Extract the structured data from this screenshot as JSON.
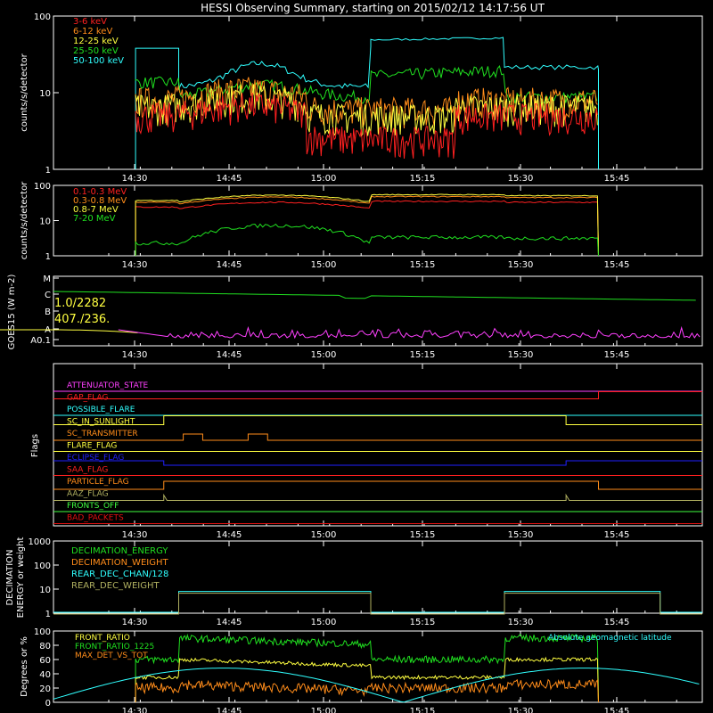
{
  "title": "HESSI Observing Summary, starting on 2015/02/12 14:17:56 UT",
  "x_tick_labels": [
    "14:30",
    "14:45",
    "15:00",
    "15:15",
    "15:30",
    "15:45"
  ],
  "colors": {
    "red": "#ff2020",
    "orange": "#ff8c1a",
    "yellow": "#ffff40",
    "green": "#20e020",
    "cyan": "#30ffff",
    "magenta": "#ff40ff",
    "blue": "#2020ff",
    "olive": "#b0b060",
    "lightgreen": "#40ff40",
    "darkred": "#e01010"
  },
  "chart_data": [
    {
      "type": "line",
      "id": "counts-low",
      "ylabel": "counts/s/detector",
      "yscale": "log",
      "ylim": [
        1,
        100
      ],
      "y_tick_labels": [
        "1",
        "10",
        "100"
      ],
      "series": [
        {
          "name": "3-6 keV",
          "color": "red"
        },
        {
          "name": "6-12 keV",
          "color": "orange"
        },
        {
          "name": "12-25 keV",
          "color": "yellow"
        },
        {
          "name": "25-50 keV",
          "color": "green"
        },
        {
          "name": "50-100 keV",
          "color": "cyan"
        }
      ]
    },
    {
      "type": "line",
      "id": "counts-high",
      "ylabel": "counts/s/detector",
      "yscale": "log",
      "ylim": [
        1,
        100
      ],
      "y_tick_labels": [
        "1",
        "10",
        "100"
      ],
      "series": [
        {
          "name": "0.1-0.3 MeV",
          "color": "red"
        },
        {
          "name": "0.3-0.8 MeV",
          "color": "orange"
        },
        {
          "name": "0.8-7 MeV",
          "color": "yellow"
        },
        {
          "name": "7-20 MeV",
          "color": "green"
        }
      ]
    },
    {
      "type": "line",
      "id": "goes",
      "ylabel": "GOES15 (W m-2)",
      "y_tick_labels": [
        "A0.1",
        "A",
        "B",
        "C",
        "M"
      ],
      "annotations": [
        "1.0/2282",
        "407./236."
      ]
    },
    {
      "type": "line",
      "id": "flags",
      "ylabel": "Flags",
      "flags": [
        {
          "name": "ATTENUATOR_STATE",
          "color": "magenta"
        },
        {
          "name": "GAP_FLAG",
          "color": "red"
        },
        {
          "name": "POSSIBLE_FLARE",
          "color": "cyan"
        },
        {
          "name": "SC_IN_SUNLIGHT",
          "color": "yellow"
        },
        {
          "name": "SC_TRANSMITTER",
          "color": "orange"
        },
        {
          "name": "FLARE_FLAG",
          "color": "yellow"
        },
        {
          "name": "ECLIPSE_FLAG",
          "color": "blue"
        },
        {
          "name": "SAA_FLAG",
          "color": "red"
        },
        {
          "name": "PARTICLE_FLAG",
          "color": "orange"
        },
        {
          "name": "AAZ_FLAG",
          "color": "olive"
        },
        {
          "name": "FRONTS_OFF",
          "color": "lightgreen"
        },
        {
          "name": "BAD_PACKETS",
          "color": "darkred"
        }
      ]
    },
    {
      "type": "line",
      "id": "decimation",
      "ylabel": "DECIMATION ENERGY or weight",
      "yscale": "log",
      "ylim": [
        1,
        1000
      ],
      "y_tick_labels": [
        "1",
        "10",
        "100",
        "1000"
      ],
      "series": [
        {
          "name": "DECIMATION_ENERGY",
          "color": "green"
        },
        {
          "name": "DECIMATION_WEIGHT",
          "color": "orange"
        },
        {
          "name": "REAR_DEC_CHAN/128",
          "color": "cyan"
        },
        {
          "name": "REAR_DEC_WEIGHT",
          "color": "olive"
        }
      ]
    },
    {
      "type": "line",
      "id": "ratios",
      "ylabel": "Degrees or %",
      "ylim": [
        0,
        100
      ],
      "y_tick_labels": [
        "0",
        "20",
        "40",
        "60",
        "80",
        "100"
      ],
      "series": [
        {
          "name": "FRONT_RATIO",
          "color": "yellow"
        },
        {
          "name": "FRONT_RATIO_1225",
          "color": "green"
        },
        {
          "name": "MAX_DET_VS_TOT",
          "color": "orange"
        },
        {
          "name": "Absolute geomagnetic latitude",
          "color": "cyan"
        }
      ]
    }
  ]
}
